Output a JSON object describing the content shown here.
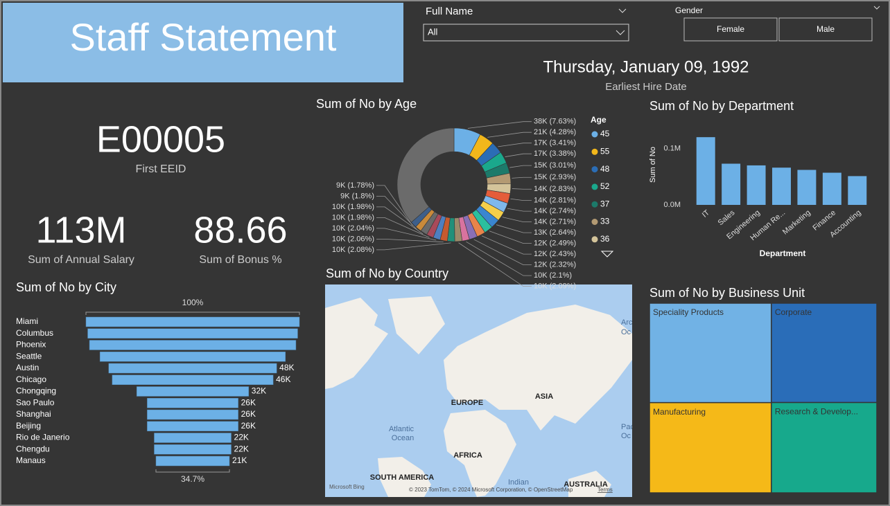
{
  "header": {
    "title": "Staff Statement"
  },
  "slicers": {
    "full_name": {
      "label": "Full Name",
      "value": "All"
    },
    "gender": {
      "label": "Gender",
      "options": [
        "Female",
        "Male"
      ]
    }
  },
  "cards": [
    {
      "value": "Thursday, January 09, 1992",
      "label": "Earliest Hire Date"
    },
    {
      "value": "E00005",
      "label": "First EEID"
    },
    {
      "value": "113M",
      "label": "Sum of Annual Salary"
    },
    {
      "value": "88.66",
      "label": "Sum of Bonus %"
    }
  ],
  "chart_data": [
    {
      "type": "donut",
      "title": "Sum of No by Age",
      "legend_title": "Age",
      "categories": [
        "45",
        "55",
        "48",
        "52",
        "37",
        "33",
        "36",
        null,
        null,
        null,
        null,
        null,
        null,
        null,
        null,
        null,
        null,
        null,
        null,
        null,
        null,
        null,
        null
      ],
      "values": [
        7.63,
        4.28,
        3.41,
        3.38,
        3.01,
        2.93,
        2.83,
        2.81,
        2.74,
        2.71,
        2.64,
        2.49,
        2.43,
        2.32,
        2.1,
        2.09,
        2.08,
        2.06,
        2.04,
        1.98,
        1.98,
        1.8,
        1.78
      ],
      "value_labels": [
        "38K (7.63%)",
        "21K (4.28%)",
        "17K (3.41%)",
        "17K (3.38%)",
        "15K (3.01%)",
        "15K (2.93%)",
        "14K (2.83%)",
        "14K (2.81%)",
        "14K (2.74%)",
        "14K (2.71%)",
        "13K (2.64%)",
        "12K (2.49%)",
        "12K (2.43%)",
        "12K (2.32%)",
        "10K (2.1%)",
        "10K (2.09%)",
        "10K (2.08%)",
        "10K (2.06%)",
        "10K (2.04%)",
        "10K (1.98%)",
        "10K (1.98%)",
        "9K (1.8%)",
        "9K (1.78%)"
      ],
      "colors": [
        "#6cb0e6",
        "#f2b71b",
        "#2b6db5",
        "#1aa88c",
        "#1c7a6a",
        "#b39a73",
        "#d4c49a",
        "#e45d3a",
        "#7fb8ec",
        "#f5cf4a",
        "#3a86d0",
        "#2bbf9e",
        "#e8844a",
        "#8a6fb5",
        "#d8739f",
        "#9b8a6a",
        "#20907a",
        "#c65a2e",
        "#4f7fbf",
        "#a84a5a",
        "#6a6a6a",
        "#c98a3a",
        "#3e5f8a"
      ]
    },
    {
      "type": "bar",
      "title": "Sum of No by Department",
      "x_label": "Department",
      "y_label": "Sum of No",
      "categories": [
        "IT",
        "Sales",
        "Engineering",
        "Human Re...",
        "Marketing",
        "Finance",
        "Accounting"
      ],
      "values": [
        120000,
        73000,
        70000,
        66000,
        62000,
        57000,
        51000
      ],
      "color": "#6cb0e6",
      "grid": false,
      "ylim": [
        0,
        130000
      ],
      "yticks": [
        {
          "value": 0,
          "label": "0.0M"
        },
        {
          "value": 100000,
          "label": "0.1M"
        }
      ]
    },
    {
      "type": "funnel",
      "title": "Sum of No by City",
      "categories": [
        "Miami",
        "Columbus",
        "Phoenix",
        "Seattle",
        "Austin",
        "Chicago",
        "Chongqing",
        "Sao Paulo",
        "Shanghai",
        "Beijing",
        "Rio de Janerio",
        "Chengdu",
        "Manaus"
      ],
      "values": [
        61000,
        60000,
        59000,
        53000,
        48000,
        46000,
        32000,
        26000,
        26000,
        26000,
        22000,
        22000,
        21000
      ],
      "value_labels": [
        null,
        null,
        null,
        null,
        "48K",
        "46K",
        "32K",
        "26K",
        "26K",
        "26K",
        "22K",
        "22K",
        "21K"
      ],
      "color": "#6cb0e6",
      "top_label": "100%",
      "bottom_label": "34.7%"
    },
    {
      "type": "treemap",
      "title": "Sum of No by Business Unit",
      "categories": [
        "Speciality Products",
        "Manufacturing",
        "Corporate",
        "Research & Develop..."
      ],
      "values": [
        140000,
        127000,
        121000,
        110000
      ],
      "colors": [
        "#71b2e5",
        "#f5b918",
        "#2a6db8",
        "#17a98c"
      ]
    }
  ],
  "map": {
    "title": "Sum of No by Country",
    "labels": [
      "EUROPE",
      "ASIA",
      "AFRICA",
      "SOUTH AMERICA",
      "AUSTRALIA",
      "Atlantic",
      "Ocean",
      "Indian",
      "Arc",
      "Oc",
      "Pac",
      "Oc"
    ],
    "provider": "Microsoft Bing",
    "attribution": "© 2023 TomTom, © 2024 Microsoft Corporation, © OpenStreetMap",
    "terms": "Terms"
  }
}
